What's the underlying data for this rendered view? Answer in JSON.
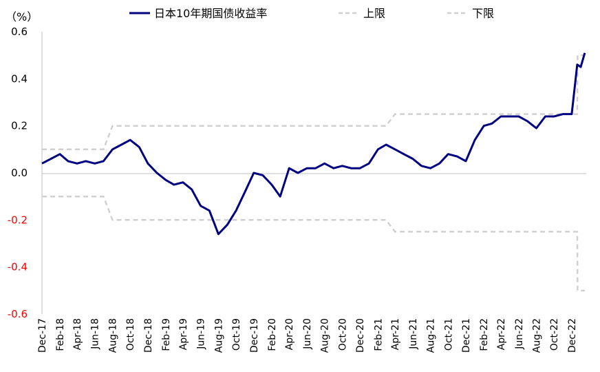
{
  "chart_data": {
    "type": "line",
    "unit_label": "（%）",
    "ylim": [
      -0.6,
      0.6
    ],
    "y_ticks": [
      0.6,
      0.4,
      0.2,
      0.0,
      -0.2,
      -0.4,
      -0.6
    ],
    "y_tick_labels": [
      "0.6",
      "0.4",
      "0.2",
      "0.0",
      "-0.2",
      "-0.4",
      "-0.6"
    ],
    "x_ticks": [
      "Dec-17",
      "Feb-18",
      "Apr-18",
      "Jun-18",
      "Aug-18",
      "Oct-18",
      "Dec-18",
      "Feb-19",
      "Apr-19",
      "Jun-19",
      "Aug-19",
      "Oct-19",
      "Dec-19",
      "Feb-20",
      "Apr-20",
      "Jun-20",
      "Aug-20",
      "Oct-20",
      "Dec-20",
      "Feb-21",
      "Apr-21",
      "Jun-21",
      "Aug-21",
      "Oct-21",
      "Dec-21",
      "Feb-22",
      "Apr-22",
      "Jun-22",
      "Aug-22",
      "Oct-22",
      "Dec-22"
    ],
    "legend": [
      "日本10年期国债收益率",
      "上限",
      "下限"
    ],
    "colors": {
      "yield": "#000080",
      "band": "#d0d0d0",
      "negative_tick": "#ff0000",
      "axis": "#bfbfbf"
    },
    "series": [
      {
        "name": "日本10年期国债收益率",
        "style": "solid",
        "points": [
          [
            "2017-12",
            0.04
          ],
          [
            "2018-01",
            0.06
          ],
          [
            "2018-02",
            0.08
          ],
          [
            "2018-03",
            0.05
          ],
          [
            "2018-04",
            0.04
          ],
          [
            "2018-05",
            0.05
          ],
          [
            "2018-06",
            0.04
          ],
          [
            "2018-07",
            0.05
          ],
          [
            "2018-08",
            0.1
          ],
          [
            "2018-09",
            0.12
          ],
          [
            "2018-10",
            0.14
          ],
          [
            "2018-11",
            0.11
          ],
          [
            "2018-12",
            0.04
          ],
          [
            "2019-01",
            0.0
          ],
          [
            "2019-02",
            -0.03
          ],
          [
            "2019-03",
            -0.05
          ],
          [
            "2019-04",
            -0.04
          ],
          [
            "2019-05",
            -0.07
          ],
          [
            "2019-06",
            -0.14
          ],
          [
            "2019-07",
            -0.16
          ],
          [
            "2019-08",
            -0.26
          ],
          [
            "2019-09",
            -0.22
          ],
          [
            "2019-10",
            -0.16
          ],
          [
            "2019-11",
            -0.08
          ],
          [
            "2019-12",
            0.0
          ],
          [
            "2020-01",
            -0.01
          ],
          [
            "2020-02",
            -0.05
          ],
          [
            "2020-03",
            -0.1
          ],
          [
            "2020-04",
            0.02
          ],
          [
            "2020-05",
            0.0
          ],
          [
            "2020-06",
            0.02
          ],
          [
            "2020-07",
            0.02
          ],
          [
            "2020-08",
            0.04
          ],
          [
            "2020-09",
            0.02
          ],
          [
            "2020-10",
            0.03
          ],
          [
            "2020-11",
            0.02
          ],
          [
            "2020-12",
            0.02
          ],
          [
            "2021-01",
            0.04
          ],
          [
            "2021-02",
            0.1
          ],
          [
            "2021-03",
            0.12
          ],
          [
            "2021-04",
            0.1
          ],
          [
            "2021-05",
            0.08
          ],
          [
            "2021-06",
            0.06
          ],
          [
            "2021-07",
            0.03
          ],
          [
            "2021-08",
            0.02
          ],
          [
            "2021-09",
            0.04
          ],
          [
            "2021-10",
            0.08
          ],
          [
            "2021-11",
            0.07
          ],
          [
            "2021-12",
            0.05
          ],
          [
            "2022-01",
            0.14
          ],
          [
            "2022-02",
            0.2
          ],
          [
            "2022-03",
            0.21
          ],
          [
            "2022-04",
            0.24
          ],
          [
            "2022-05",
            0.24
          ],
          [
            "2022-06",
            0.24
          ],
          [
            "2022-07",
            0.22
          ],
          [
            "2022-08",
            0.19
          ],
          [
            "2022-09",
            0.24
          ],
          [
            "2022-10",
            0.24
          ],
          [
            "2022-11",
            0.25
          ],
          [
            "2022-12",
            0.25
          ],
          [
            "2022-12-20",
            0.46
          ],
          [
            "2023-01",
            0.45
          ],
          [
            "2023-01-15",
            0.51
          ]
        ]
      },
      {
        "name": "上限",
        "style": "dashed",
        "points": [
          [
            "2017-12",
            0.1
          ],
          [
            "2018-07",
            0.1
          ],
          [
            "2018-08",
            0.2
          ],
          [
            "2021-03",
            0.2
          ],
          [
            "2021-04",
            0.25
          ],
          [
            "2022-12-20",
            0.25
          ],
          [
            "2022-12-21",
            0.5
          ],
          [
            "2023-01-15",
            0.5
          ]
        ]
      },
      {
        "name": "下限",
        "style": "dashed",
        "points": [
          [
            "2017-12",
            -0.1
          ],
          [
            "2018-07",
            -0.1
          ],
          [
            "2018-08",
            -0.2
          ],
          [
            "2021-03",
            -0.2
          ],
          [
            "2021-04",
            -0.25
          ],
          [
            "2022-12-20",
            -0.25
          ],
          [
            "2022-12-21",
            -0.5
          ],
          [
            "2023-01-15",
            -0.5
          ]
        ]
      }
    ]
  }
}
